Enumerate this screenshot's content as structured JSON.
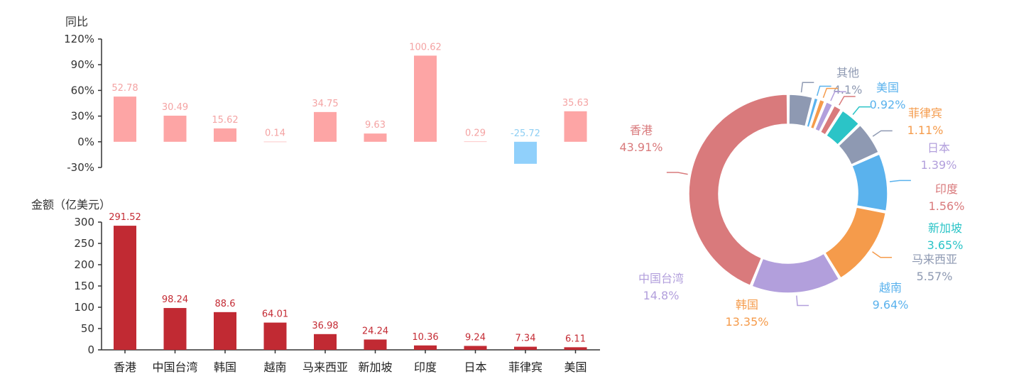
{
  "chart_data": [
    {
      "type": "bar",
      "ylabel": "同比",
      "categories": [
        "香港",
        "中国台湾",
        "韩国",
        "越南",
        "马来西亚",
        "新加坡",
        "印度",
        "日本",
        "菲律宾",
        "美国"
      ],
      "values": [
        52.78,
        30.49,
        15.62,
        0.14,
        34.75,
        9.63,
        100.62,
        0.29,
        -25.72,
        35.63
      ],
      "value_labels": [
        "52.78",
        "30.49",
        "15.62",
        "0.14",
        "34.75",
        "9.63",
        "100.62",
        "0.29",
        "-25.72",
        "35.63"
      ],
      "ylim": [
        -30,
        120
      ],
      "yticks": [
        "-30%",
        "0%",
        "30%",
        "60%",
        "90%",
        "120%"
      ],
      "yticks_values": [
        -30,
        0,
        30,
        60,
        90,
        120
      ],
      "colors": {
        "positive": "#fda5a5",
        "negative": "#90d0fb"
      }
    },
    {
      "type": "bar",
      "ylabel": "金额（亿美元）",
      "categories": [
        "香港",
        "中国台湾",
        "韩国",
        "越南",
        "马来西亚",
        "新加坡",
        "印度",
        "日本",
        "菲律宾",
        "美国"
      ],
      "values": [
        291.52,
        98.24,
        88.6,
        64.01,
        36.98,
        24.24,
        10.36,
        9.24,
        7.34,
        6.11
      ],
      "value_labels": [
        "291.52",
        "98.24",
        "88.6",
        "64.01",
        "36.98",
        "24.24",
        "10.36",
        "9.24",
        "7.34",
        "6.11"
      ],
      "ylim": [
        0,
        300
      ],
      "yticks": [
        "0",
        "50",
        "100",
        "150",
        "200",
        "250",
        "300"
      ],
      "yticks_values": [
        0,
        50,
        100,
        150,
        200,
        250,
        300
      ],
      "colors": {
        "bar": "#c12a33"
      }
    },
    {
      "type": "pie",
      "donut": true,
      "slices": [
        {
          "name": "其他",
          "value": 4.1,
          "label": "4.1%",
          "color": "#8e99b2"
        },
        {
          "name": "美国",
          "value": 0.92,
          "label": "0.92%",
          "color": "#5ab2ed"
        },
        {
          "name": "菲律宾",
          "value": 1.11,
          "label": "1.11%",
          "color": "#f59b4b"
        },
        {
          "name": "日本",
          "value": 1.39,
          "label": "1.39%",
          "color": "#b29fdc"
        },
        {
          "name": "印度",
          "value": 1.56,
          "label": "1.56%",
          "color": "#d97a7c"
        },
        {
          "name": "新加坡",
          "value": 3.65,
          "label": "3.65%",
          "color": "#2bc4c7"
        },
        {
          "name": "马来西亚",
          "value": 5.57,
          "label": "5.57%",
          "color": "#8e99b2"
        },
        {
          "name": "越南",
          "value": 9.64,
          "label": "9.64%",
          "color": "#5ab2ed"
        },
        {
          "name": "韩国",
          "value": 13.35,
          "label": "13.35%",
          "color": "#f59b4b"
        },
        {
          "name": "中国台湾",
          "value": 14.8,
          "label": "14.8%",
          "color": "#b29fdc"
        },
        {
          "name": "香港",
          "value": 43.91,
          "label": "43.91%",
          "color": "#d97a7c"
        }
      ]
    }
  ]
}
